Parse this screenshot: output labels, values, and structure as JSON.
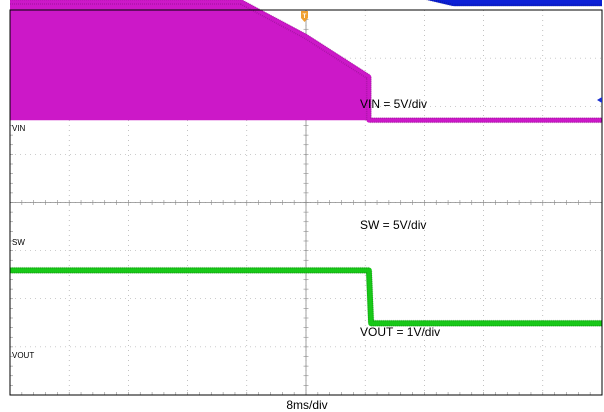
{
  "chart_data": {
    "type": "line",
    "title": "",
    "xlabel": "8ms/div",
    "time_per_div_ms": 8,
    "x_divisions": 10,
    "y_divisions": 8,
    "grid": true,
    "trigger_marker": "T",
    "trigger_marker_color": "#f0a030",
    "channel_marker_color": "#1a2fd0",
    "series": [
      {
        "name": "VIN",
        "annotation": "VIN = 5V/div",
        "color": "#0b1fd6",
        "x": [
          0,
          31.2,
          40,
          48,
          53,
          60,
          80
        ],
        "y": [
          6.91,
          6.91,
          5.8,
          4.8,
          4.45,
          4.2,
          4.2
        ],
        "band_halfwidth": 0.12
      },
      {
        "name": "SW",
        "annotation": "SW = 5V/div",
        "color": "#cc18c8",
        "x": [
          0,
          31.2,
          40,
          48.5,
          48.5,
          80
        ],
        "y": [
          4.17,
          4.17,
          3.45,
          2.61,
          1.71,
          1.71
        ],
        "fill_to": 1.71,
        "band_halfwidth": 0.05
      },
      {
        "name": "VOUT",
        "annotation": "VOUT = 1V/div",
        "color": "#18c818",
        "x": [
          0,
          48.5,
          48.8,
          80
        ],
        "y": [
          -1.41,
          -1.41,
          -2.51,
          -2.51
        ],
        "band_halfwidth": 0.06
      }
    ]
  }
}
